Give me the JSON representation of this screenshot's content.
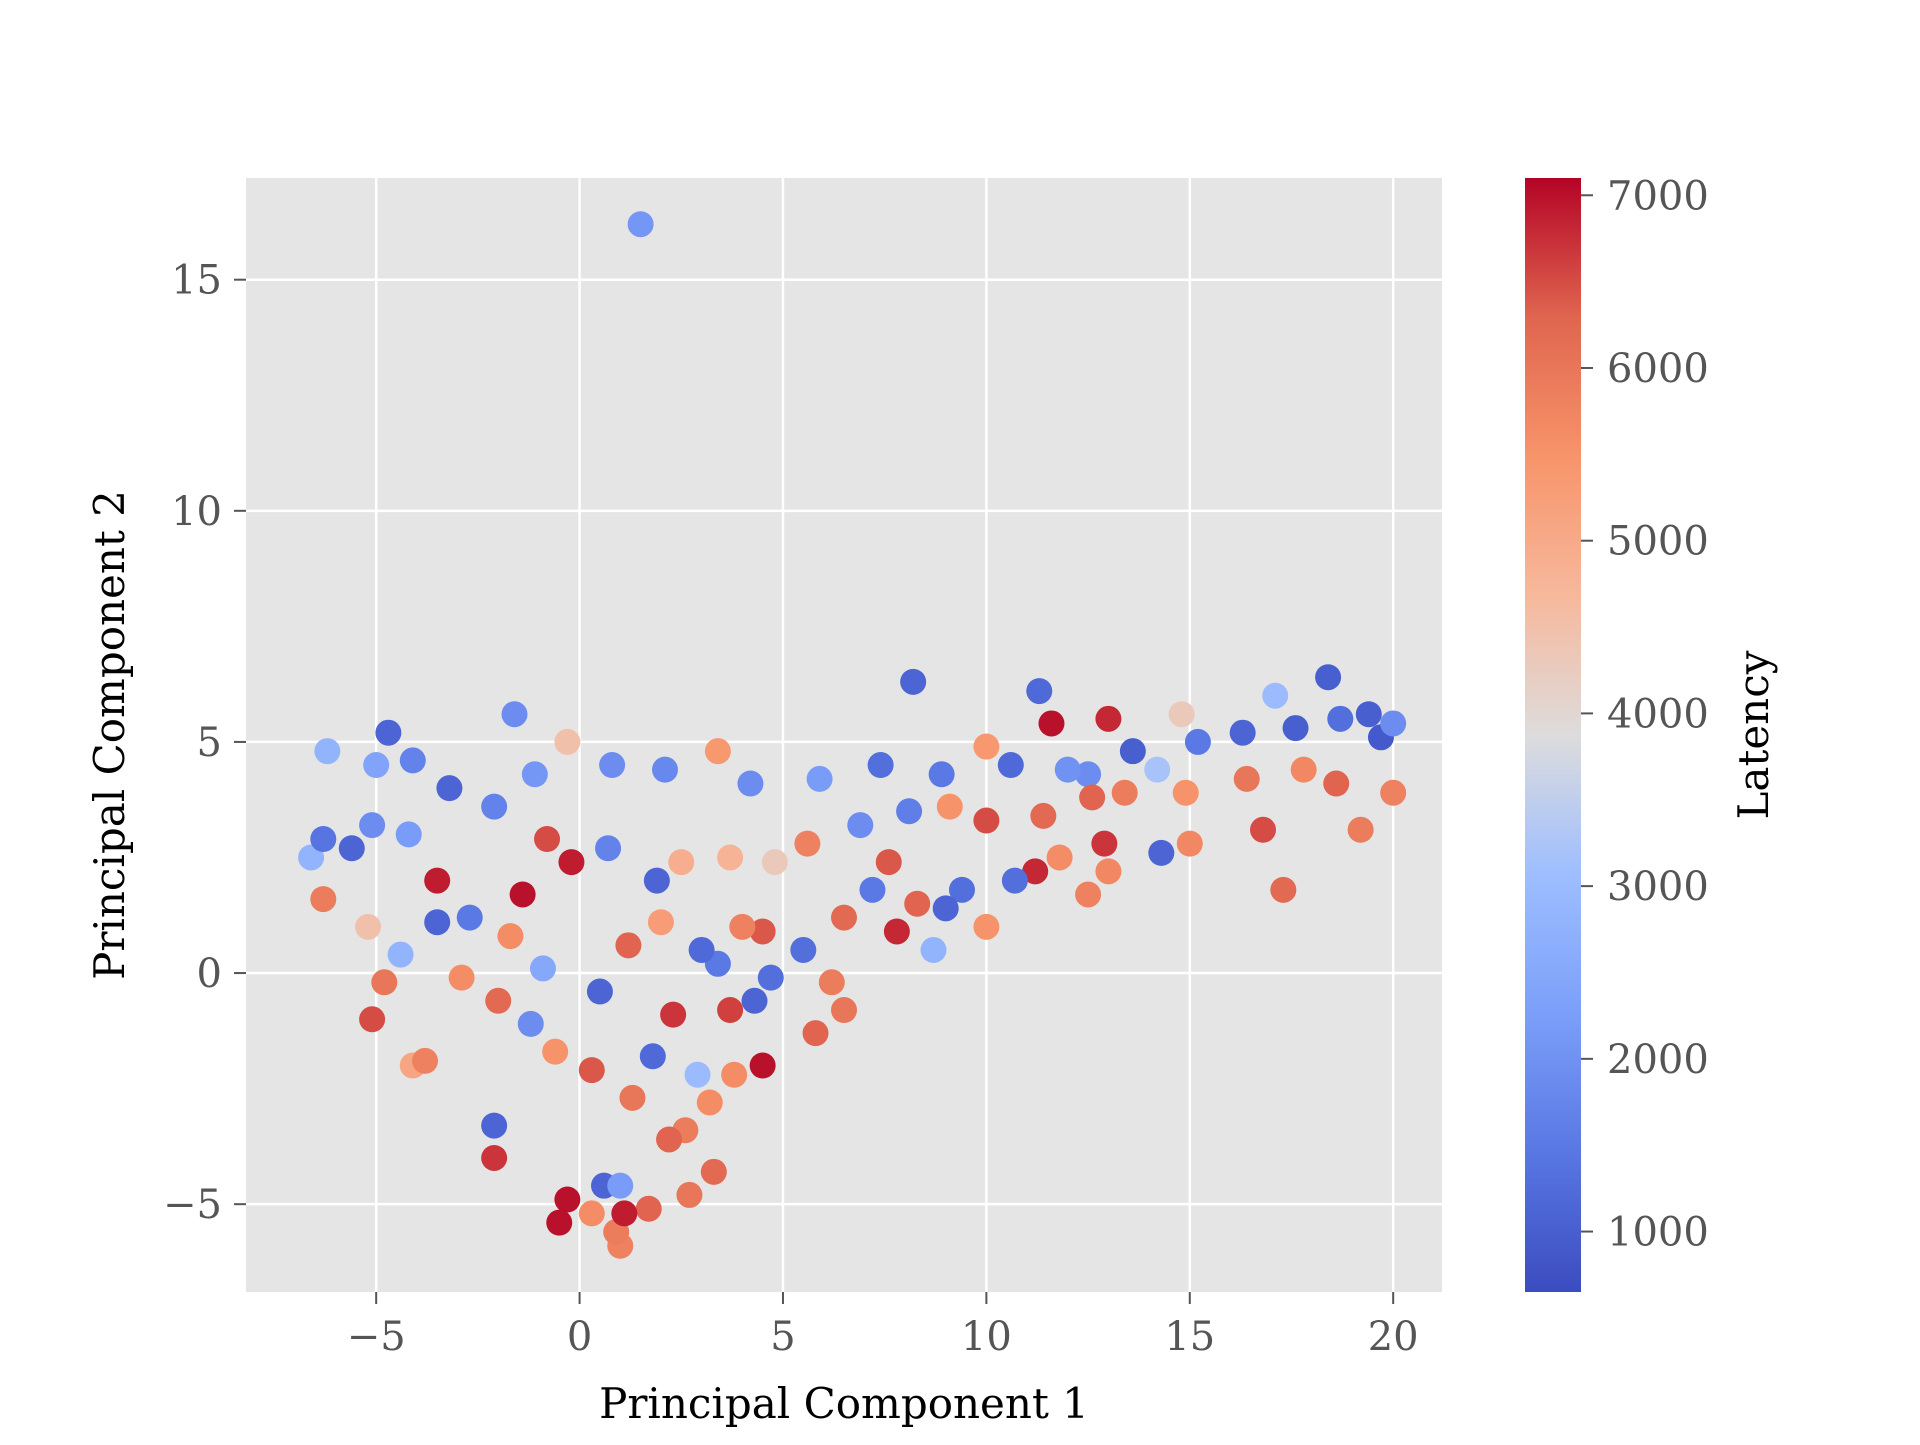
{
  "chart_data": {
    "type": "scatter",
    "title": "",
    "xlabel": "Principal Component 1",
    "ylabel": "Principal Component 2",
    "xlim": [
      -8.2,
      21.2
    ],
    "ylim": [
      -6.9,
      17.2
    ],
    "xticks": [
      -5,
      0,
      5,
      10,
      15,
      20
    ],
    "xtick_labels": [
      "−5",
      "0",
      "5",
      "10",
      "15",
      "20"
    ],
    "yticks": [
      -5,
      0,
      5,
      10,
      15
    ],
    "ytick_labels": [
      "−5",
      "0",
      "5",
      "10",
      "15"
    ],
    "grid": true,
    "background_color": "#e5e5e5",
    "grid_color": "#ffffff",
    "colormap": "coolwarm",
    "colorbar": {
      "label": "Latency",
      "range": [
        650,
        7100
      ],
      "ticks": [
        1000,
        2000,
        3000,
        4000,
        5000,
        6000,
        7000
      ],
      "tick_labels": [
        "1000",
        "2000",
        "3000",
        "4000",
        "5000",
        "6000",
        "7000"
      ]
    },
    "points": [
      [
        1.5,
        16.2,
        2100
      ],
      [
        8.2,
        6.3,
        1100
      ],
      [
        11.3,
        6.1,
        1200
      ],
      [
        18.4,
        6.4,
        1000
      ],
      [
        17.1,
        6.0,
        3000
      ],
      [
        14.8,
        5.6,
        4300
      ],
      [
        13.0,
        5.5,
        6800
      ],
      [
        11.6,
        5.4,
        7000
      ],
      [
        -4.7,
        5.2,
        1100
      ],
      [
        -1.6,
        5.6,
        1900
      ],
      [
        -0.3,
        5.0,
        4500
      ],
      [
        -5.0,
        4.5,
        2400
      ],
      [
        -6.2,
        4.8,
        2800
      ],
      [
        -4.1,
        4.6,
        1700
      ],
      [
        3.4,
        4.8,
        5400
      ],
      [
        10.0,
        4.9,
        5400
      ],
      [
        12.5,
        4.3,
        1900
      ],
      [
        14.2,
        4.4,
        3200
      ],
      [
        15.2,
        5.0,
        1500
      ],
      [
        16.3,
        5.2,
        1100
      ],
      [
        17.6,
        5.3,
        1000
      ],
      [
        18.7,
        5.5,
        1300
      ],
      [
        19.4,
        5.6,
        1000
      ],
      [
        19.7,
        5.1,
        900
      ],
      [
        20.0,
        5.4,
        1900
      ],
      [
        20.0,
        3.9,
        5800
      ],
      [
        19.2,
        3.1,
        5900
      ],
      [
        17.3,
        1.8,
        6200
      ],
      [
        16.8,
        3.1,
        6500
      ],
      [
        15.0,
        2.8,
        5700
      ],
      [
        14.3,
        2.6,
        1100
      ],
      [
        13.0,
        2.2,
        5700
      ],
      [
        12.5,
        1.7,
        5800
      ],
      [
        12.9,
        2.8,
        6700
      ],
      [
        11.8,
        2.5,
        5600
      ],
      [
        11.2,
        2.2,
        6800
      ],
      [
        10.7,
        2.0,
        1300
      ],
      [
        10.0,
        1.0,
        5500
      ],
      [
        9.4,
        1.8,
        1300
      ],
      [
        9.0,
        1.4,
        1100
      ],
      [
        8.7,
        0.5,
        2800
      ],
      [
        8.3,
        1.5,
        6300
      ],
      [
        7.8,
        0.9,
        6800
      ],
      [
        7.6,
        2.4,
        6400
      ],
      [
        7.2,
        1.8,
        1500
      ],
      [
        6.5,
        1.2,
        6200
      ],
      [
        6.2,
        -0.2,
        5900
      ],
      [
        6.5,
        -0.8,
        6000
      ],
      [
        5.8,
        -1.3,
        6300
      ],
      [
        5.5,
        0.5,
        1300
      ],
      [
        4.7,
        -0.1,
        1300
      ],
      [
        4.3,
        -0.6,
        1100
      ],
      [
        4.5,
        0.9,
        6400
      ],
      [
        4.0,
        1.0,
        5800
      ],
      [
        3.7,
        -0.8,
        6600
      ],
      [
        3.4,
        0.2,
        1500
      ],
      [
        4.5,
        -2.0,
        7000
      ],
      [
        3.8,
        -2.2,
        5600
      ],
      [
        3.2,
        -2.8,
        5600
      ],
      [
        2.9,
        -2.2,
        3000
      ],
      [
        2.6,
        -3.4,
        5900
      ],
      [
        2.2,
        -3.6,
        6300
      ],
      [
        3.3,
        -4.3,
        6200
      ],
      [
        2.7,
        -4.8,
        6000
      ],
      [
        1.7,
        -5.1,
        6300
      ],
      [
        1.0,
        -5.9,
        5800
      ],
      [
        0.9,
        -5.6,
        5900
      ],
      [
        1.1,
        -5.2,
        6900
      ],
      [
        0.6,
        -4.6,
        1100
      ],
      [
        1.0,
        -4.6,
        2200
      ],
      [
        -0.3,
        -4.9,
        7000
      ],
      [
        -0.5,
        -5.4,
        7000
      ],
      [
        0.3,
        -5.2,
        5600
      ],
      [
        -2.1,
        -3.3,
        1100
      ],
      [
        -2.1,
        -4.0,
        6700
      ],
      [
        -4.1,
        -2.0,
        5100
      ],
      [
        -3.8,
        -1.9,
        5800
      ],
      [
        -5.1,
        -1.0,
        6500
      ],
      [
        -4.8,
        -0.2,
        6000
      ],
      [
        -5.2,
        1.0,
        4500
      ],
      [
        -6.3,
        1.6,
        5900
      ],
      [
        -6.6,
        2.5,
        2800
      ],
      [
        -6.3,
        2.9,
        1400
      ],
      [
        -5.6,
        2.7,
        1100
      ],
      [
        -5.1,
        3.2,
        1900
      ],
      [
        -4.2,
        3.0,
        2200
      ],
      [
        -3.5,
        2.0,
        6900
      ],
      [
        -2.7,
        1.2,
        1500
      ],
      [
        -1.4,
        1.7,
        7000
      ],
      [
        -0.8,
        2.9,
        6500
      ],
      [
        -0.2,
        2.4,
        6900
      ],
      [
        0.7,
        2.7,
        1700
      ],
      [
        1.9,
        2.0,
        1100
      ],
      [
        2.5,
        2.4,
        4900
      ],
      [
        3.7,
        2.5,
        4800
      ],
      [
        4.8,
        2.4,
        4300
      ],
      [
        5.6,
        2.8,
        5800
      ],
      [
        6.9,
        3.2,
        1900
      ],
      [
        8.1,
        3.5,
        1600
      ],
      [
        9.1,
        3.6,
        5500
      ],
      [
        10.0,
        3.3,
        6500
      ],
      [
        11.4,
        3.4,
        6200
      ],
      [
        12.6,
        3.8,
        6300
      ],
      [
        13.4,
        3.9,
        5900
      ],
      [
        14.9,
        3.9,
        5500
      ],
      [
        16.4,
        4.2,
        6000
      ],
      [
        17.8,
        4.4,
        5700
      ],
      [
        18.6,
        4.1,
        6300
      ],
      [
        -3.2,
        4.0,
        1100
      ],
      [
        -2.1,
        3.6,
        1700
      ],
      [
        -1.1,
        4.3,
        2100
      ],
      [
        0.8,
        4.5,
        1900
      ],
      [
        2.1,
        4.4,
        1800
      ],
      [
        4.2,
        4.1,
        1900
      ],
      [
        5.9,
        4.2,
        2200
      ],
      [
        7.4,
        4.5,
        1300
      ],
      [
        8.9,
        4.3,
        1500
      ],
      [
        10.6,
        4.5,
        1200
      ],
      [
        12.0,
        4.4,
        2000
      ],
      [
        13.6,
        4.8,
        1000
      ],
      [
        -2.9,
        -0.1,
        5600
      ],
      [
        -2.0,
        -0.6,
        6200
      ],
      [
        -1.2,
        -1.1,
        1900
      ],
      [
        -0.6,
        -1.7,
        5500
      ],
      [
        0.3,
        -2.1,
        6400
      ],
      [
        1.3,
        -2.7,
        6000
      ],
      [
        1.8,
        -1.8,
        1200
      ],
      [
        2.3,
        -0.9,
        6700
      ],
      [
        3.0,
        0.5,
        1200
      ],
      [
        -1.7,
        0.8,
        5600
      ],
      [
        -0.9,
        0.1,
        2500
      ],
      [
        0.5,
        -0.4,
        1100
      ],
      [
        1.2,
        0.6,
        6300
      ],
      [
        2.0,
        1.1,
        5300
      ],
      [
        -3.5,
        1.1,
        1100
      ],
      [
        -4.4,
        0.4,
        2800
      ]
    ]
  }
}
